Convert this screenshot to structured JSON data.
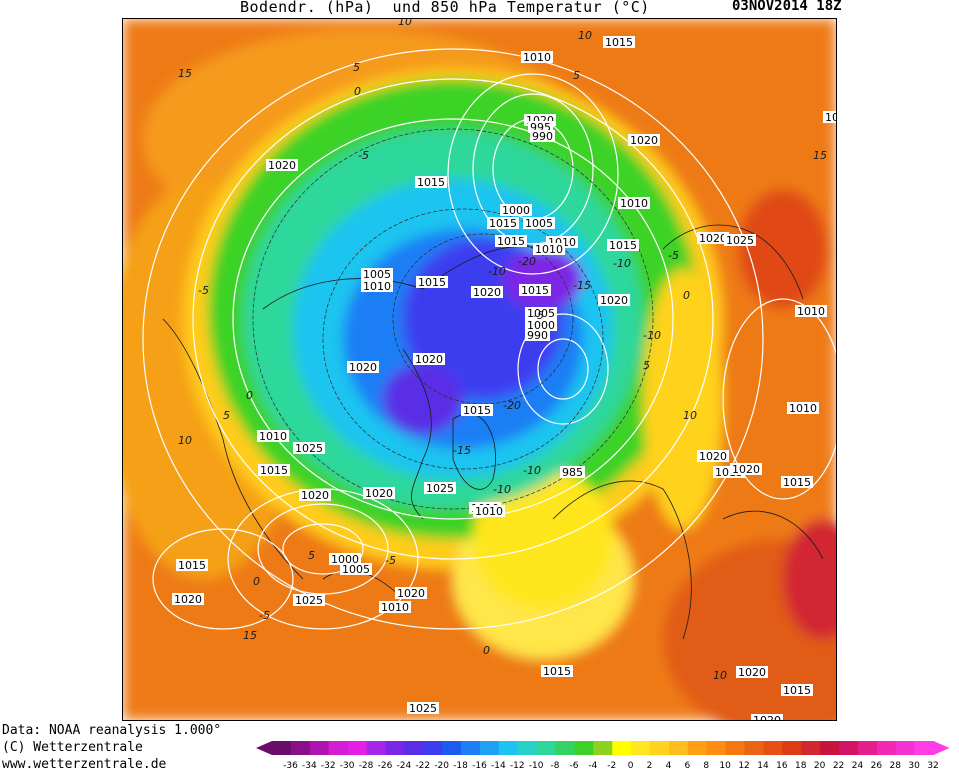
{
  "header": {
    "title": "Bodendr. (hPa)  und 850 hPa Temperatur (°C)",
    "datetime": "03NOV2014 18Z"
  },
  "map": {
    "isobar_labels": [
      "1015",
      "1010",
      "1020",
      "1025",
      "1020",
      "995",
      "990",
      "1020",
      "1010",
      "1015",
      "1020",
      "1025",
      "1000",
      "1005",
      "1010",
      "1015",
      "1005",
      "1010",
      "1015",
      "1020",
      "1020",
      "1015",
      "1010",
      "1020",
      "1005",
      "1000",
      "990",
      "1020",
      "1025",
      "1010",
      "1015",
      "1020",
      "1010",
      "1015",
      "1020",
      "1025",
      "1015",
      "1020",
      "1010",
      "1015",
      "985",
      "1000",
      "1005",
      "1015",
      "1020",
      "1025",
      "1020",
      "1010",
      "1015",
      "1025",
      "1020",
      "1015",
      "1020",
      "1020",
      "1015",
      "1015",
      "1010",
      "1010"
    ],
    "temp_labels": [
      "10",
      "15",
      "5",
      "0",
      "-5",
      "-10",
      "-15",
      "-20",
      "-10",
      "-5",
      "0",
      "5",
      "10",
      "15",
      "-5",
      "-10",
      "-20",
      "-15",
      "-10",
      "-5",
      "0",
      "5",
      "10",
      "5",
      "0",
      "-5",
      "-10",
      "10",
      "15",
      "-5",
      "0",
      "5",
      "10"
    ]
  },
  "footer": {
    "line1": "Data: NOAA reanalysis 1.000°",
    "line2": "(C) Wetterzentrale",
    "line3": "www.wetterzentrale.de"
  },
  "legend": {
    "ticks": [
      "-36",
      "-34",
      "-32",
      "-30",
      "-28",
      "-26",
      "-24",
      "-22",
      "-20",
      "-18",
      "-16",
      "-14",
      "-12",
      "-10",
      "-8",
      "-6",
      "-4",
      "-2",
      "0",
      "2",
      "4",
      "6",
      "8",
      "10",
      "12",
      "14",
      "16",
      "18",
      "20",
      "22",
      "24",
      "26",
      "28",
      "30",
      "32"
    ],
    "colors": [
      "#6a0d6a",
      "#8a108a",
      "#b014b0",
      "#d31ed3",
      "#e61ee6",
      "#a628e6",
      "#7b28e6",
      "#5a2ee6",
      "#3c3cf0",
      "#1e5af0",
      "#1e7ef5",
      "#1ea0f5",
      "#1ec4f0",
      "#28d2c8",
      "#2dd79b",
      "#32d264",
      "#3cd228",
      "#8cd21e",
      "#ffff00",
      "#ffe61e",
      "#ffd21e",
      "#ffbe1e",
      "#ffa014",
      "#ff8c14",
      "#f57814",
      "#eb6414",
      "#e65014",
      "#dc3c14",
      "#d22832",
      "#c8143c",
      "#d21464",
      "#e61e8c",
      "#f028b4",
      "#f532d2",
      "#ff3ce6"
    ]
  }
}
